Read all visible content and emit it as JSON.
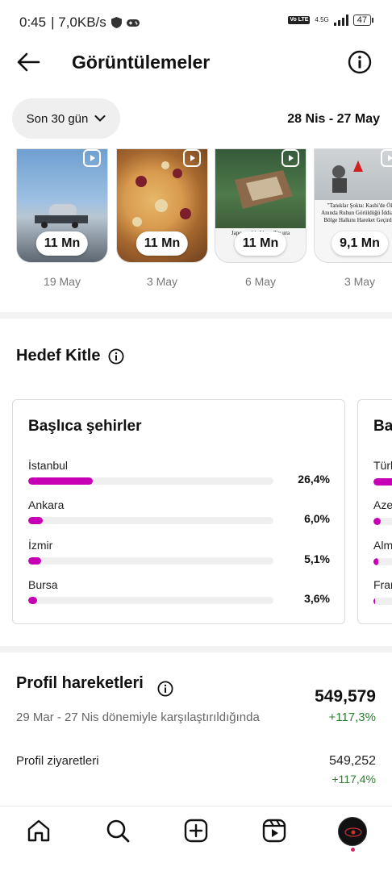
{
  "status_bar": {
    "time": "0:45",
    "speed": "| 7,0KB/s",
    "network": "4.5G",
    "volte": "Vo LTE",
    "battery": "47"
  },
  "header": {
    "title": "Görüntülemeler"
  },
  "filter": {
    "range_label": "Son 30 gün",
    "date_range": "28 Nis - 27 May"
  },
  "reels": [
    {
      "views": "11 Mn",
      "date": "19 May"
    },
    {
      "views": "11 Mn",
      "date": "3 May"
    },
    {
      "views": "11 Mn",
      "date": "6 May",
      "caption": "Japo          nanlık Al              as: Ziy              ura Gömüldü"
    },
    {
      "views": "9,1 Mn",
      "date": "3 May",
      "caption": "\"Tanıklar Şokta: Kashi'de Öl Anında Ruhun Görüldüğü İddiası, Bölge Halkını Hareket Geçirdi\""
    }
  ],
  "audience": {
    "title": "Hedef Kitle",
    "cities_card": {
      "title": "Başlıca şehirler",
      "items": [
        {
          "name": "İstanbul",
          "pct_label": "26,4%",
          "pct": 26.4
        },
        {
          "name": "Ankara",
          "pct_label": "6,0%",
          "pct": 6.0
        },
        {
          "name": "İzmir",
          "pct_label": "5,1%",
          "pct": 5.1
        },
        {
          "name": "Bursa",
          "pct_label": "3,6%",
          "pct": 3.6
        }
      ]
    },
    "countries_card": {
      "title": "Ba",
      "items": [
        {
          "name": "Türk",
          "pct": 80
        },
        {
          "name": "Aze",
          "pct": 15
        },
        {
          "name": "Alm",
          "pct": 10
        },
        {
          "name": "Fran",
          "pct": 4
        }
      ]
    }
  },
  "profile_activity": {
    "title": "Profil hareketleri",
    "total": "549,579",
    "compare_text": "29 Mar - 27 Nis dönemiyle karşılaştırıldığında",
    "change": "+117,3%",
    "visits_label": "Profil ziyaretleri",
    "visits_value": "549,252",
    "visits_change": "+117,4%"
  },
  "colors": {
    "accent": "#c800b5",
    "positive": "#2e7d32"
  },
  "icons": {
    "back": "arrow-left-icon",
    "info": "info-icon",
    "chevron": "chevron-down-icon",
    "reel": "reel-icon",
    "home": "home-icon",
    "search": "search-icon",
    "create": "plus-square-icon",
    "reels_tab": "reels-icon",
    "profile": "avatar"
  }
}
